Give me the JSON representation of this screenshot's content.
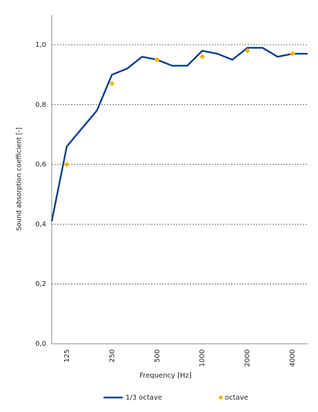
{
  "chart_data": {
    "type": "line",
    "x_label": "Frequency [Hz]",
    "y_label": "Sound absorption coefficient [-]",
    "categories": [
      null,
      "125",
      null,
      null,
      "250",
      null,
      null,
      "500",
      null,
      null,
      "1000",
      null,
      null,
      "2000",
      null,
      null,
      "4000",
      null
    ],
    "series": [
      {
        "name": "1/3 octave",
        "color": "#0e3f8c",
        "kind": "line",
        "values": [
          0.41,
          0.66,
          0.72,
          0.78,
          0.9,
          0.92,
          0.96,
          0.95,
          0.93,
          0.93,
          0.98,
          0.97,
          0.95,
          0.99,
          0.99,
          0.96,
          0.97,
          0.97
        ]
      },
      {
        "name": "octave",
        "color": "#f5b50a",
        "kind": "marker",
        "values": [
          null,
          0.6,
          null,
          null,
          0.87,
          null,
          null,
          0.95,
          null,
          null,
          0.96,
          null,
          null,
          0.98,
          null,
          null,
          0.97,
          null
        ]
      }
    ],
    "ylim": [
      0,
      1.1
    ],
    "yticks": [
      {
        "value": 0,
        "label": "0,0"
      },
      {
        "value": 0.2,
        "label": "0,2"
      },
      {
        "value": 0.4,
        "label": "0,4"
      },
      {
        "value": 0.6,
        "label": "0,6"
      },
      {
        "value": 0.8,
        "label": "0,8"
      },
      {
        "value": 1.0,
        "label": "1,0"
      }
    ],
    "grid": true
  }
}
